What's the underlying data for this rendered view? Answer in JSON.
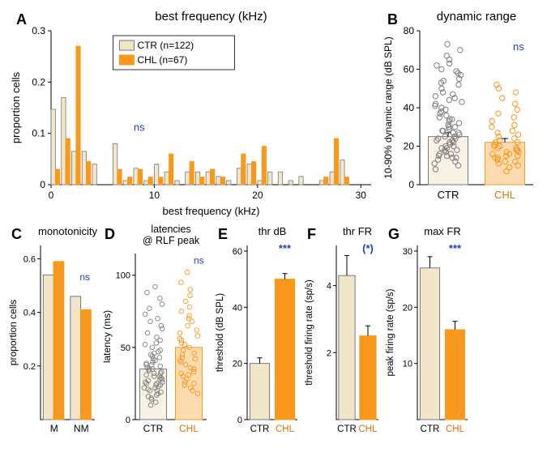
{
  "colors": {
    "ctr_fill": "#f2e6ca",
    "ctr_stroke": "#7a7a7a",
    "chl_fill": "#f8981d",
    "chl_stroke": "#f8981d",
    "text": "#000000",
    "ns": "#2040c0",
    "sig": "#2040c0",
    "scatter_ctr": "#808080",
    "scatter_chl": "#f8981d",
    "chl_label": "#e07000"
  },
  "panelA": {
    "letter": "A",
    "title": "best frequency (kHz)",
    "xlabel": "best frequency (kHz)",
    "ylabel": "proportion cells",
    "xlim": [
      0,
      31
    ],
    "ylim": [
      0,
      0.3
    ],
    "xticks": [
      0,
      10,
      20,
      30
    ],
    "yticks": [
      0,
      0.1,
      0.2,
      0.3
    ],
    "ns_label": "ns",
    "legend": {
      "ctr": "CTR (n=122)",
      "chl": "CHL (n=67)"
    },
    "bin_centers": [
      0.5,
      1.5,
      2.5,
      3.5,
      4.5,
      5.5,
      6.5,
      7.5,
      8.5,
      9.5,
      10.5,
      11.5,
      12.5,
      13.5,
      14.5,
      15.5,
      16.5,
      17.5,
      18.5,
      19.5,
      20.5,
      21.5,
      22.5,
      23.5,
      24.5,
      25.5,
      26.5,
      27.5,
      28.5,
      29.5
    ],
    "ctr": [
      0.147,
      0.17,
      0.065,
      0.065,
      0.04,
      0.0,
      0.08,
      0.008,
      0.032,
      0.008,
      0.04,
      0.025,
      0.008,
      0.025,
      0.025,
      0.025,
      0.016,
      0.008,
      0.032,
      0.04,
      0.008,
      0.025,
      0.025,
      0.008,
      0.016,
      0.0,
      0.008,
      0.025,
      0.048,
      0.0
    ],
    "chl": [
      0.03,
      0.09,
      0.27,
      0.045,
      0.0,
      0.0,
      0.03,
      0.015,
      0.03,
      0.015,
      0.015,
      0.06,
      0.0,
      0.045,
      0.015,
      0.03,
      0.015,
      0.0,
      0.06,
      0.045,
      0.075,
      0.0,
      0.0,
      0.0,
      0.0,
      0.0,
      0.015,
      0.09,
      0.015,
      0.0
    ]
  },
  "panelB": {
    "letter": "B",
    "title": "dynamic range",
    "ylabel": "10-90% dynamic range (dB SPL)",
    "yticks": [
      0,
      20,
      40,
      60,
      80
    ],
    "ylim": [
      0,
      80
    ],
    "categories": [
      "CTR",
      "CHL"
    ],
    "ns_label": "ns",
    "bar_means": {
      "ctr": 25,
      "chl": 22
    },
    "bar_err": {
      "ctr": 2,
      "chl": 2
    },
    "scatter_ctr": [
      8,
      10,
      11,
      12,
      13,
      14,
      14,
      15,
      15,
      16,
      16,
      17,
      18,
      18,
      19,
      19,
      20,
      20,
      21,
      22,
      22,
      23,
      23,
      24,
      24,
      25,
      25,
      26,
      27,
      27,
      28,
      28,
      29,
      30,
      30,
      31,
      32,
      33,
      34,
      34,
      35,
      36,
      37,
      38,
      39,
      40,
      41,
      42,
      43,
      44,
      45,
      46,
      47,
      48,
      50,
      52,
      53,
      54,
      55,
      57,
      58,
      59,
      60,
      62,
      63,
      65,
      67,
      70,
      73
    ],
    "scatter_chl": [
      7,
      9,
      10,
      11,
      12,
      12,
      13,
      14,
      14,
      15,
      15,
      16,
      16,
      17,
      17,
      18,
      18,
      19,
      19,
      20,
      20,
      21,
      22,
      22,
      23,
      24,
      25,
      26,
      27,
      28,
      30,
      31,
      33,
      35,
      37,
      39,
      42,
      45,
      48,
      50,
      52
    ]
  },
  "panelC": {
    "letter": "C",
    "title": "monotonicity",
    "ylabel": "proportion cells",
    "yticks": [
      0.2,
      0.4,
      0.6
    ],
    "ylim": [
      0,
      0.65
    ],
    "categories": [
      "M",
      "NM"
    ],
    "ns_label": "ns",
    "ctr": [
      0.54,
      0.46
    ],
    "chl": [
      0.59,
      0.41
    ]
  },
  "panelD": {
    "letter": "D",
    "title": "latencies\n@ RLF peak",
    "ylabel": "latency (ms)",
    "yticks": [
      0,
      50,
      100
    ],
    "ylim": [
      0,
      115
    ],
    "categories": [
      "CTR",
      "CHL"
    ],
    "ns_label": "ns",
    "bar_means": {
      "ctr": 35,
      "chl": 50
    },
    "scatter_ctr": [
      10,
      12,
      14,
      15,
      16,
      17,
      18,
      19,
      20,
      20,
      21,
      22,
      22,
      23,
      24,
      24,
      25,
      25,
      26,
      26,
      27,
      28,
      28,
      29,
      30,
      30,
      31,
      32,
      32,
      33,
      34,
      35,
      35,
      36,
      37,
      38,
      38,
      39,
      40,
      41,
      42,
      43,
      44,
      45,
      46,
      47,
      48,
      50,
      52,
      53,
      55,
      57,
      60,
      63,
      65,
      68,
      70,
      73,
      77,
      80,
      84,
      88,
      92
    ],
    "scatter_chl": [
      18,
      20,
      22,
      24,
      25,
      26,
      28,
      30,
      31,
      32,
      33,
      35,
      36,
      38,
      40,
      41,
      42,
      43,
      45,
      46,
      48,
      50,
      52,
      53,
      55,
      56,
      58,
      60,
      62,
      65,
      68,
      70,
      72,
      75,
      78,
      82,
      86,
      90,
      95,
      102
    ]
  },
  "panelE": {
    "letter": "E",
    "title": "thr dB",
    "ylabel": "threshold (dB SPL)",
    "yticks": [
      0,
      20,
      40,
      60
    ],
    "ylim": [
      0,
      62
    ],
    "categories": [
      "CTR",
      "CHL"
    ],
    "sig_label": "***",
    "ctr": 20,
    "chl": 50,
    "ctr_err": 2,
    "chl_err": 2
  },
  "panelF": {
    "letter": "F",
    "title": "thr FR",
    "ylabel": "threshold firing rate (sp/s)",
    "yticks": [
      2,
      4
    ],
    "ylim": [
      0,
      5.2
    ],
    "categories": [
      "CTR",
      "CHL"
    ],
    "sig_label": "(*)",
    "ctr": 4.3,
    "chl": 2.5,
    "ctr_err": 0.6,
    "chl_err": 0.3
  },
  "panelG": {
    "letter": "G",
    "title": "max FR",
    "ylabel": "peak firing rate (sp/s)",
    "yticks": [
      10,
      20,
      30
    ],
    "ylim": [
      0,
      31
    ],
    "categories": [
      "CTR",
      "CHL"
    ],
    "sig_label": "***",
    "ctr": 27,
    "chl": 16,
    "ctr_err": 2,
    "chl_err": 1.5
  }
}
